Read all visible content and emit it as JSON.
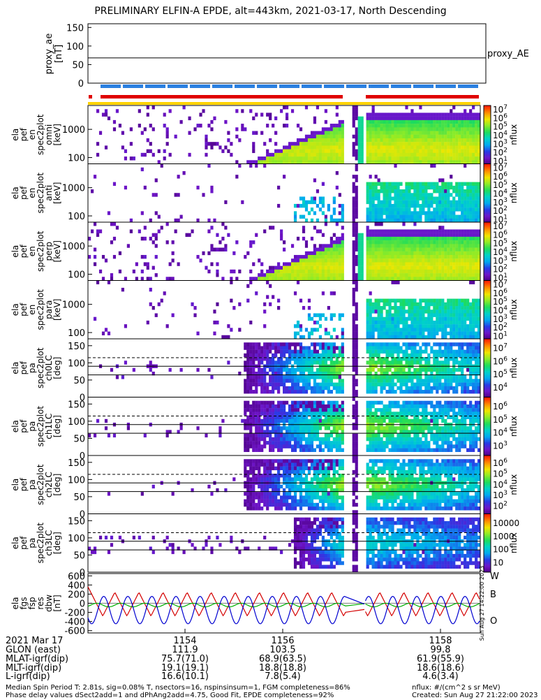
{
  "title": "PRELIMINARY ELFIN-A EPDE, alt=443km, 2021-03-17, North Descending",
  "proxy_ae": {
    "ylabel": "proxy_ae\n[nT]",
    "legend": "proxy_AE",
    "yticks": [
      "0",
      "50",
      "100",
      "150"
    ],
    "ylim": [
      0,
      160
    ],
    "value": 68
  },
  "panels": [
    {
      "ylabel": [
        "ela",
        "pef",
        "en",
        "spec2plot",
        "omni",
        "[keV]"
      ],
      "kind": "energy",
      "yticks": [
        "100",
        "1000"
      ],
      "cbar_ticks": [
        "10",
        "10",
        "10",
        "10",
        "10",
        "10",
        "10"
      ],
      "cbar_exps": [
        "1",
        "2",
        "3",
        "4",
        "5",
        "6",
        "7"
      ],
      "cbar_label": "nflux"
    },
    {
      "ylabel": [
        "ela",
        "pef",
        "en",
        "spec2plot",
        "anti",
        "[keV]"
      ],
      "kind": "energy_weak",
      "yticks": [
        "100",
        "1000"
      ],
      "cbar_ticks": [
        "10",
        "10",
        "10",
        "10",
        "10",
        "10",
        "10"
      ],
      "cbar_exps": [
        "1",
        "2",
        "3",
        "4",
        "5",
        "6",
        "7"
      ],
      "cbar_label": "nflux"
    },
    {
      "ylabel": [
        "ela",
        "pef",
        "en",
        "spec2plot",
        "perp",
        "[keV]"
      ],
      "kind": "energy",
      "yticks": [
        "100",
        "1000"
      ],
      "cbar_ticks": [
        "10",
        "10",
        "10",
        "10",
        "10",
        "10",
        "10"
      ],
      "cbar_exps": [
        "1",
        "2",
        "3",
        "4",
        "5",
        "6",
        "7"
      ],
      "cbar_label": "nflux"
    },
    {
      "ylabel": [
        "ela",
        "pef",
        "en",
        "spec2plot",
        "para",
        "[keV]"
      ],
      "kind": "energy_weak",
      "yticks": [
        "100",
        "1000"
      ],
      "cbar_ticks": [
        "10",
        "10",
        "10",
        "10",
        "10",
        "10",
        "10"
      ],
      "cbar_exps": [
        "1",
        "2",
        "3",
        "4",
        "5",
        "6",
        "7"
      ],
      "cbar_label": "nflux"
    },
    {
      "ylabel": [
        "ela",
        "pef",
        "pa",
        "spec2plot",
        "ch0LC",
        "[deg]"
      ],
      "kind": "pitch",
      "yticks": [
        "0",
        "50",
        "100",
        "150"
      ],
      "cbar_ticks": [
        "10",
        "10",
        "10",
        "10"
      ],
      "cbar_exps": [
        "4",
        "5",
        "6",
        "7"
      ],
      "cbar_label": "nflux"
    },
    {
      "ylabel": [
        "ela",
        "pef",
        "pa",
        "spec2plot",
        "ch1LC",
        "[deg]"
      ],
      "kind": "pitch",
      "yticks": [
        "0",
        "50",
        "100",
        "150"
      ],
      "cbar_ticks": [
        "10",
        "10",
        "10",
        "10"
      ],
      "cbar_exps": [
        "3",
        "4",
        "5",
        "6"
      ],
      "cbar_label": "nflux"
    },
    {
      "ylabel": [
        "ela",
        "pef",
        "pa",
        "spec2plot",
        "ch2LC",
        "[deg]"
      ],
      "kind": "pitch",
      "yticks": [
        "0",
        "50",
        "100",
        "150"
      ],
      "cbar_ticks": [
        "10",
        "10",
        "10",
        "10",
        "10"
      ],
      "cbar_exps": [
        "2",
        "3",
        "4",
        "5",
        "6"
      ],
      "cbar_label": "nflux"
    },
    {
      "ylabel": [
        "ela",
        "pef",
        "pa",
        "spec2plot",
        "ch3LC",
        "[deg]"
      ],
      "kind": "pitch_weak",
      "yticks": [
        "0",
        "50",
        "100",
        "150"
      ],
      "cbar_ticks": [
        "10",
        "100",
        "1000",
        "10000"
      ],
      "cbar_exps": [
        "",
        "",
        "",
        ""
      ],
      "cbar_label": "nflux"
    }
  ],
  "fgs": {
    "ylabel": [
      "ela",
      "fgs",
      "fsp",
      "res",
      "dbw",
      "[nT]"
    ],
    "yticks": [
      "-600",
      "-400",
      "-200",
      "0",
      "200",
      "400",
      "600"
    ],
    "ylim": [
      -650,
      650
    ],
    "legend": [
      {
        "name": "W",
        "color": "#d40000"
      },
      {
        "name": "B",
        "color": "#00b000"
      },
      {
        "name": "O",
        "color": "#0000d0"
      }
    ]
  },
  "xaxis": {
    "ticks": [
      "1154",
      "1156",
      "1158"
    ],
    "rows": [
      {
        "label": "2021 Mar 17",
        "values": [
          "1154",
          "1156",
          "1158"
        ]
      },
      {
        "label": "GLON (east)",
        "values": [
          "111.9",
          "103.5",
          "99.8"
        ]
      },
      {
        "label": "MLAT-igrf(dip)",
        "values": [
          "75.7(71.0)",
          "68.9(63.5)",
          "61.9(55.9)"
        ]
      },
      {
        "label": "MLT-igrf(dip)",
        "values": [
          "19.1(19.1)",
          "18.8(18.8)",
          "18.6(18.6)"
        ]
      },
      {
        "label": "L-igrf(dip)",
        "values": [
          "16.6(10.1)",
          "7.8(5.4)",
          "4.6(3.4)"
        ]
      }
    ]
  },
  "side_stamp": "Sun Aug 27 14:22:00 2023",
  "footer": {
    "line1": "Median Spin Period T: 2.81s, sig=0.08% T, nsectors=16, nspinsinsum=1, FGM completeness=86%",
    "line2": "Phase delay values dSect2add=1 and dPhAng2add=4.75, Good Fit, EPDE completeness=92%",
    "units": "nflux: #/(cm^2 s sr MeV)",
    "created": "Created: Sun Aug 27 21:22:00 2023"
  },
  "colors": {
    "red_bar": "#e00000",
    "blue_bar": "#2a7fe0",
    "yellow_bar": "#ffd200"
  }
}
